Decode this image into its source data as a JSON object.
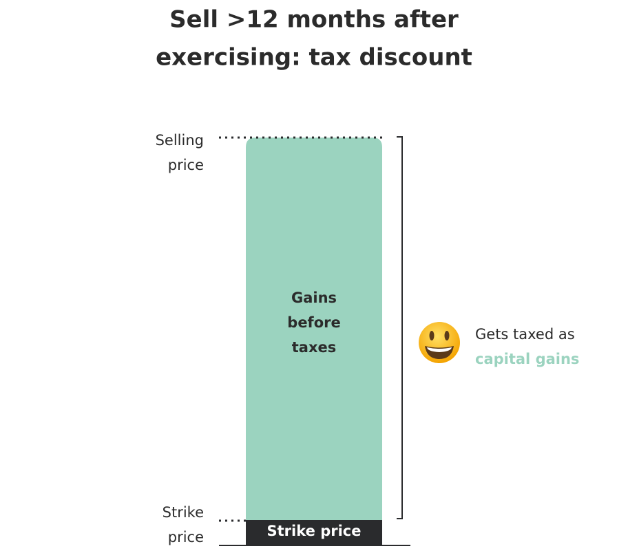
{
  "header": {
    "title_lines": [
      "Sell >12 months after",
      "exercising: tax discount"
    ]
  },
  "diagram": {
    "selling_price_label": [
      "Selling",
      "price"
    ],
    "strike_price_label": [
      "Strike",
      "price"
    ],
    "gains_label": [
      "Gains",
      "before",
      "taxes"
    ],
    "strike_bar_label": "Strike price",
    "note": {
      "line1": "Gets taxed as",
      "highlight": "capital gains"
    }
  }
}
